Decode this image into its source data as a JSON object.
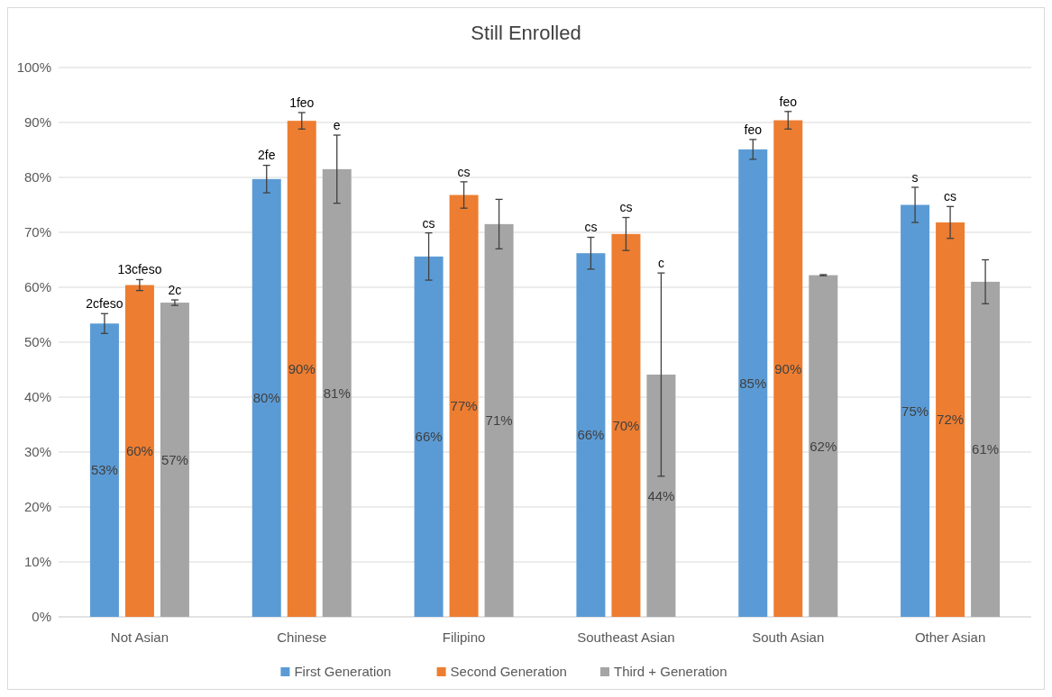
{
  "chart_data": {
    "type": "bar",
    "title": "Still Enrolled",
    "categories": [
      "Not Asian",
      "Chinese",
      "Filipino",
      "Southeast Asian",
      "South Asian",
      "Other Asian"
    ],
    "series": [
      {
        "name": "First Generation",
        "color": "#5b9bd5",
        "values": [
          53.4,
          79.7,
          65.6,
          66.2,
          85.1,
          75.0
        ],
        "errors": [
          1.8,
          2.5,
          4.3,
          2.9,
          1.8,
          3.2
        ],
        "value_labels": [
          "53%",
          "80%",
          "66%",
          "66%",
          "85%",
          "75%"
        ]
      },
      {
        "name": "Second Generation",
        "color": "#ed7d31",
        "values": [
          60.4,
          90.3,
          76.8,
          69.7,
          90.4,
          71.8
        ],
        "errors": [
          1.0,
          1.5,
          2.4,
          3.0,
          1.6,
          2.9
        ],
        "value_labels": [
          "60%",
          "90%",
          "77%",
          "70%",
          "90%",
          "72%"
        ]
      },
      {
        "name": "Third + Generation",
        "color": "#a5a5a5",
        "values": [
          57.2,
          81.5,
          71.5,
          44.1,
          62.2,
          61.0
        ],
        "errors": [
          0.5,
          6.2,
          4.5,
          18.5,
          0.1,
          4.0
        ],
        "value_labels": [
          "57%",
          "81%",
          "71%",
          "44%",
          "62%",
          "61%"
        ]
      }
    ],
    "ylim": [
      0,
      100
    ],
    "yticks": [
      {
        "value": 0,
        "label": "0%"
      },
      {
        "value": 10,
        "label": "10%"
      },
      {
        "value": 20,
        "label": "20%"
      },
      {
        "value": 30,
        "label": "30%"
      },
      {
        "value": 40,
        "label": "40%"
      },
      {
        "value": 50,
        "label": "50%"
      },
      {
        "value": 60,
        "label": "60%"
      },
      {
        "value": 70,
        "label": "70%"
      },
      {
        "value": 80,
        "label": "80%"
      },
      {
        "value": 90,
        "label": "90%"
      },
      {
        "value": 100,
        "label": "100%"
      }
    ],
    "grid": "y",
    "legend": "bottom",
    "annotations": [
      "2cfeso",
      "13cfeso",
      "2c",
      "2fe",
      "1feo",
      "e",
      "cs",
      "cs",
      "cs",
      "cs",
      "c",
      "feo",
      "feo",
      "s",
      "cs"
    ]
  }
}
